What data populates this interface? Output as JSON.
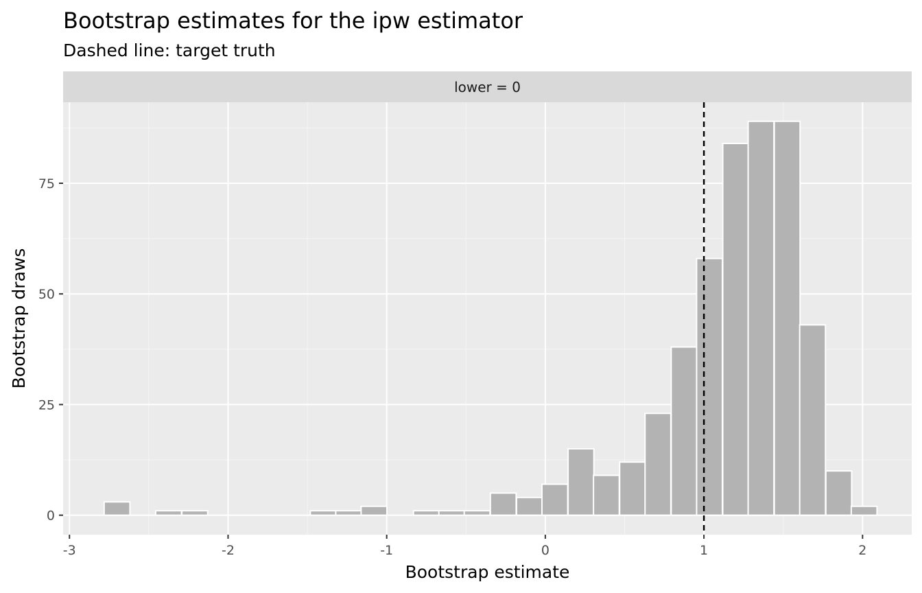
{
  "chart_data": {
    "type": "bar",
    "title": "Bootstrap estimates for the ipw estimator",
    "subtitle": "Dashed line: target truth",
    "facet_label": "lower = 0",
    "xlabel": "Bootstrap estimate",
    "ylabel": "Bootstrap draws",
    "xlim": [
      -3.04,
      2.31
    ],
    "ylim": [
      -4.4,
      93.3
    ],
    "x_ticks": [
      -3,
      -2,
      -1,
      0,
      1,
      2
    ],
    "x_tick_labels": [
      "-3",
      "-2",
      "-1",
      "0",
      "1",
      "2"
    ],
    "y_ticks": [
      0,
      25,
      50,
      75
    ],
    "y_tick_labels": [
      "0",
      "25",
      "50",
      "75"
    ],
    "reference_line": {
      "x": 1.0,
      "style": "dashed",
      "color": "#000000"
    },
    "bin_width": 0.1625,
    "bins": [
      {
        "x": -2.7,
        "count": 3
      },
      {
        "x": -2.375,
        "count": 1
      },
      {
        "x": -2.21,
        "count": 1
      },
      {
        "x": -1.4,
        "count": 1
      },
      {
        "x": -1.24,
        "count": 1
      },
      {
        "x": -1.08,
        "count": 2
      },
      {
        "x": -0.75,
        "count": 1
      },
      {
        "x": -0.59,
        "count": 1
      },
      {
        "x": -0.43,
        "count": 1
      },
      {
        "x": -0.265,
        "count": 5
      },
      {
        "x": -0.1,
        "count": 4
      },
      {
        "x": 0.06,
        "count": 7
      },
      {
        "x": 0.225,
        "count": 15
      },
      {
        "x": 0.385,
        "count": 9
      },
      {
        "x": 0.55,
        "count": 12
      },
      {
        "x": 0.71,
        "count": 23
      },
      {
        "x": 0.875,
        "count": 38
      },
      {
        "x": 1.035,
        "count": 58
      },
      {
        "x": 1.2,
        "count": 84
      },
      {
        "x": 1.36,
        "count": 89
      },
      {
        "x": 1.525,
        "count": 89
      },
      {
        "x": 1.685,
        "count": 43
      },
      {
        "x": 1.85,
        "count": 10
      },
      {
        "x": 2.01,
        "count": 2
      }
    ],
    "grid": true,
    "colors": {
      "panel_background": "#ebebeb",
      "strip_background": "#d9d9d9",
      "bar_fill": "#b3b3b3",
      "bar_outline": "#ffffff",
      "grid_major": "#ffffff",
      "grid_minor": "#f5f5f5",
      "tick": "#333333"
    }
  }
}
